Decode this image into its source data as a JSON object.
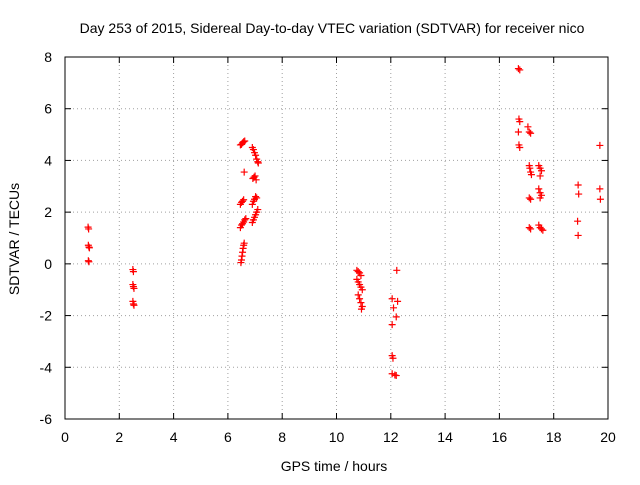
{
  "chart_data": {
    "type": "scatter",
    "title": "Day 253 of 2015, Sidereal Day-to-day VTEC variation (SDTVAR) for receiver nico",
    "xlabel": "GPS time / hours",
    "ylabel": "SDTVAR / TECUs",
    "xlim": [
      0,
      20
    ],
    "ylim": [
      -6,
      8
    ],
    "x_ticks": [
      "0",
      "2",
      "4",
      "6",
      "8",
      "10",
      "12",
      "14",
      "16",
      "18",
      "20"
    ],
    "y_ticks": [
      "-6",
      "-4",
      "-2",
      "0",
      "2",
      "4",
      "6",
      "8"
    ],
    "grid": true,
    "marker": "+",
    "color": "#ff0000",
    "series": [
      {
        "name": "SDTVAR",
        "points": [
          [
            0.85,
            1.42
          ],
          [
            0.87,
            1.35
          ],
          [
            0.86,
            0.72
          ],
          [
            0.88,
            0.65
          ],
          [
            0.9,
            0.62
          ],
          [
            0.86,
            0.12
          ],
          [
            0.88,
            0.08
          ],
          [
            2.5,
            -0.22
          ],
          [
            2.52,
            -0.3
          ],
          [
            2.5,
            -0.8
          ],
          [
            2.52,
            -0.88
          ],
          [
            2.54,
            -0.95
          ],
          [
            2.5,
            -1.45
          ],
          [
            2.52,
            -1.55
          ],
          [
            2.54,
            -1.6
          ],
          [
            6.48,
            0.05
          ],
          [
            6.5,
            0.15
          ],
          [
            6.52,
            0.3
          ],
          [
            6.54,
            0.45
          ],
          [
            6.56,
            0.6
          ],
          [
            6.58,
            0.72
          ],
          [
            6.6,
            0.8
          ],
          [
            6.46,
            1.4
          ],
          [
            6.5,
            1.5
          ],
          [
            6.54,
            1.55
          ],
          [
            6.58,
            1.62
          ],
          [
            6.62,
            1.7
          ],
          [
            6.66,
            1.75
          ],
          [
            6.46,
            2.3
          ],
          [
            6.5,
            2.38
          ],
          [
            6.54,
            2.42
          ],
          [
            6.58,
            2.48
          ],
          [
            6.6,
            3.55
          ],
          [
            6.46,
            4.6
          ],
          [
            6.5,
            4.62
          ],
          [
            6.54,
            4.68
          ],
          [
            6.58,
            4.72
          ],
          [
            6.62,
            4.75
          ],
          [
            6.9,
            1.6
          ],
          [
            6.94,
            1.7
          ],
          [
            6.98,
            1.8
          ],
          [
            7.02,
            1.9
          ],
          [
            7.06,
            2.0
          ],
          [
            7.1,
            2.1
          ],
          [
            6.9,
            2.3
          ],
          [
            6.94,
            2.42
          ],
          [
            6.98,
            2.5
          ],
          [
            7.02,
            2.6
          ],
          [
            7.06,
            2.55
          ],
          [
            6.92,
            3.3
          ],
          [
            6.96,
            3.35
          ],
          [
            7.0,
            3.4
          ],
          [
            7.04,
            3.25
          ],
          [
            6.9,
            4.5
          ],
          [
            6.94,
            4.42
          ],
          [
            6.98,
            4.3
          ],
          [
            7.02,
            4.2
          ],
          [
            7.06,
            4.05
          ],
          [
            7.1,
            3.95
          ],
          [
            7.12,
            3.9
          ],
          [
            10.75,
            -0.25
          ],
          [
            10.8,
            -0.3
          ],
          [
            10.85,
            -0.35
          ],
          [
            10.9,
            -0.45
          ],
          [
            10.75,
            -0.6
          ],
          [
            10.8,
            -0.7
          ],
          [
            10.85,
            -0.8
          ],
          [
            10.9,
            -0.9
          ],
          [
            10.95,
            -1.0
          ],
          [
            10.8,
            -1.2
          ],
          [
            10.85,
            -1.35
          ],
          [
            10.9,
            -1.5
          ],
          [
            10.95,
            -1.65
          ],
          [
            10.92,
            -1.75
          ],
          [
            12.05,
            -1.35
          ],
          [
            12.1,
            -1.7
          ],
          [
            12.05,
            -2.35
          ],
          [
            12.2,
            -2.05
          ],
          [
            12.25,
            -1.45
          ],
          [
            12.22,
            -0.25
          ],
          [
            12.05,
            -3.55
          ],
          [
            12.08,
            -3.65
          ],
          [
            12.05,
            -4.25
          ],
          [
            12.15,
            -4.3
          ],
          [
            12.2,
            -4.32
          ],
          [
            16.7,
            7.55
          ],
          [
            16.75,
            7.5
          ],
          [
            16.72,
            5.6
          ],
          [
            16.75,
            5.5
          ],
          [
            16.7,
            5.1
          ],
          [
            16.72,
            4.6
          ],
          [
            16.75,
            4.5
          ],
          [
            17.05,
            5.3
          ],
          [
            17.1,
            5.1
          ],
          [
            17.15,
            5.05
          ],
          [
            17.1,
            3.8
          ],
          [
            17.12,
            3.7
          ],
          [
            17.15,
            3.55
          ],
          [
            17.18,
            3.45
          ],
          [
            17.1,
            2.55
          ],
          [
            17.15,
            2.5
          ],
          [
            17.1,
            1.4
          ],
          [
            17.15,
            1.35
          ],
          [
            17.45,
            3.8
          ],
          [
            17.5,
            3.7
          ],
          [
            17.55,
            3.6
          ],
          [
            17.5,
            3.4
          ],
          [
            17.45,
            2.9
          ],
          [
            17.5,
            2.75
          ],
          [
            17.55,
            2.65
          ],
          [
            17.5,
            2.55
          ],
          [
            17.45,
            1.5
          ],
          [
            17.5,
            1.4
          ],
          [
            17.55,
            1.35
          ],
          [
            17.6,
            1.3
          ],
          [
            18.9,
            3.05
          ],
          [
            18.92,
            2.7
          ],
          [
            18.88,
            1.65
          ],
          [
            18.9,
            1.1
          ],
          [
            19.7,
            4.58
          ],
          [
            19.7,
            2.9
          ],
          [
            19.72,
            2.5
          ]
        ]
      }
    ]
  }
}
